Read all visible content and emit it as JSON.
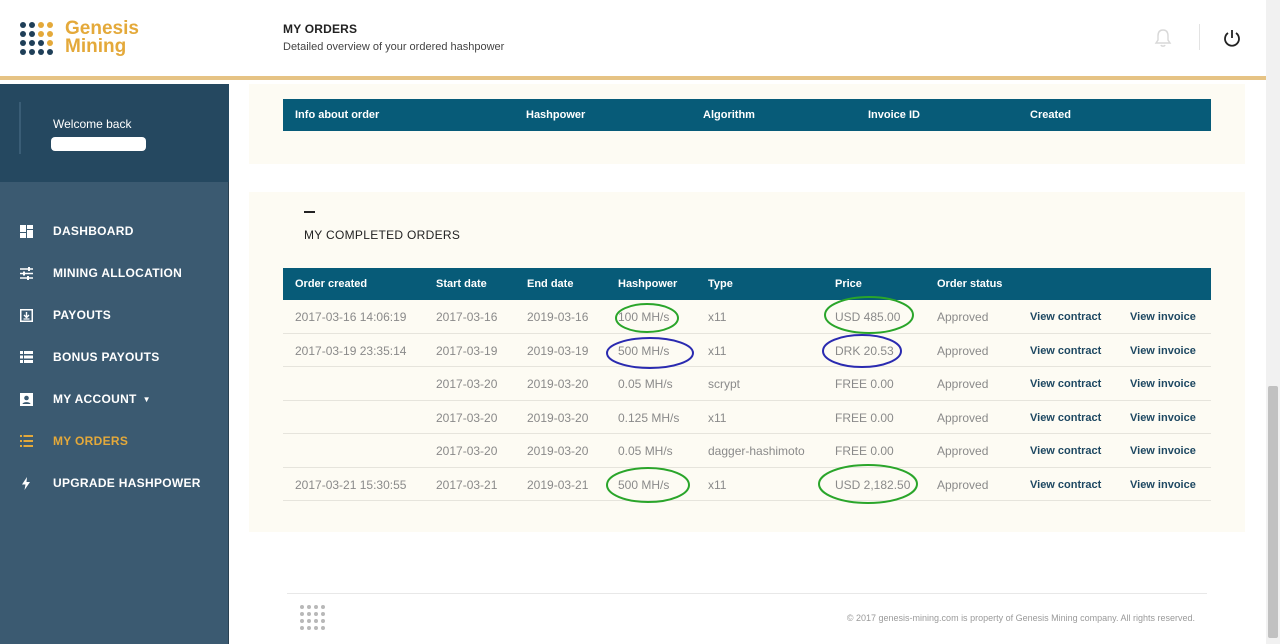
{
  "brand": {
    "line1": "Genesis",
    "line2": "Mining",
    "accent": "#e4a93a",
    "navy": "#1f3f58"
  },
  "header": {
    "title": "MY ORDERS",
    "subtitle": "Detailed overview of your ordered hashpower",
    "icons": [
      "bell-icon",
      "power-icon"
    ]
  },
  "sidebar": {
    "welcome": "Welcome back",
    "items": [
      {
        "label": "DASHBOARD",
        "icon": "dashboard-icon"
      },
      {
        "label": "MINING ALLOCATION",
        "icon": "sliders-icon"
      },
      {
        "label": "PAYOUTS",
        "icon": "payout-icon"
      },
      {
        "label": "BONUS PAYOUTS",
        "icon": "list-icon"
      },
      {
        "label": "MY ACCOUNT",
        "icon": "account-icon"
      },
      {
        "label": "MY ORDERS",
        "icon": "orders-icon",
        "active": true
      },
      {
        "label": "UPGRADE HASHPOWER",
        "icon": "bolt-icon"
      }
    ]
  },
  "pending": {
    "headers": [
      "Info about order",
      "Hashpower",
      "Algorithm",
      "Invoice ID",
      "Created"
    ]
  },
  "completed": {
    "title": "MY COMPLETED ORDERS",
    "headers": [
      "Order created",
      "Start date",
      "End date",
      "Hashpower",
      "Type",
      "Price",
      "Order status"
    ],
    "rows": [
      {
        "created": "2017-03-16 14:06:19",
        "start": "2017-03-16",
        "end": "2019-03-16",
        "hashpower": "100 MH/s",
        "type": "x11",
        "price": "USD 485.00",
        "status": "Approved",
        "contract": "View contract",
        "invoice": "View invoice"
      },
      {
        "created": "2017-03-19 23:35:14",
        "start": "2017-03-19",
        "end": "2019-03-19",
        "hashpower": "500 MH/s",
        "type": "x11",
        "price": "DRK 20.53",
        "status": "Approved",
        "contract": "View contract",
        "invoice": "View invoice"
      },
      {
        "created": "",
        "start": "2017-03-20",
        "end": "2019-03-20",
        "hashpower": "0.05 MH/s",
        "type": "scrypt",
        "price": "FREE 0.00",
        "status": "Approved",
        "contract": "View contract",
        "invoice": "View invoice"
      },
      {
        "created": "",
        "start": "2017-03-20",
        "end": "2019-03-20",
        "hashpower": "0.125 MH/s",
        "type": "x11",
        "price": "FREE 0.00",
        "status": "Approved",
        "contract": "View contract",
        "invoice": "View invoice"
      },
      {
        "created": "",
        "start": "2017-03-20",
        "end": "2019-03-20",
        "hashpower": "0.05 MH/s",
        "type": "dagger-hashimoto",
        "price": "FREE 0.00",
        "status": "Approved",
        "contract": "View contract",
        "invoice": "View invoice"
      },
      {
        "created": "2017-03-21 15:30:55",
        "start": "2017-03-21",
        "end": "2019-03-21",
        "hashpower": "500 MH/s",
        "type": "x11",
        "price": "USD 2,182.50",
        "status": "Approved",
        "contract": "View contract",
        "invoice": "View invoice"
      }
    ]
  },
  "annotation_colors": {
    "green": "#2aa52a",
    "blue": "#2a2ab0"
  },
  "footer": {
    "copyright": "© 2017 genesis-mining.com is property of Genesis Mining company. All rights reserved."
  }
}
